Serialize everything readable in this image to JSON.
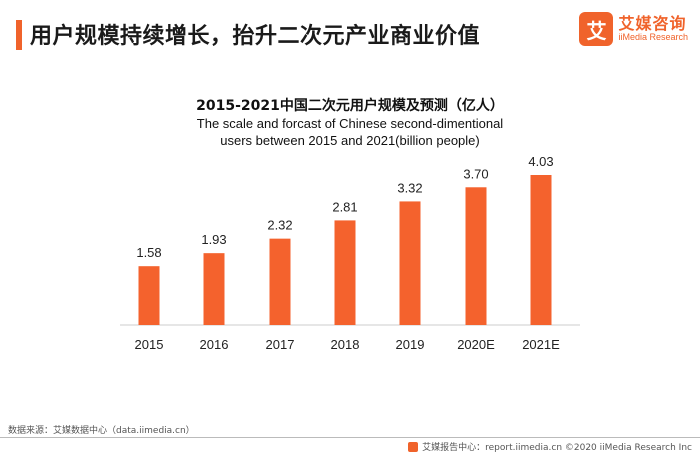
{
  "header": {
    "title": "用户规模持续增长，抬升二次元产业商业价值"
  },
  "logo": {
    "mark": "艾",
    "name_cn": "艾媒咨询",
    "name_en": "iiMedia Research",
    "icon": "iimedia-logo-icon"
  },
  "colors": {
    "accent": "#f0632b",
    "bar": "#f4622d"
  },
  "chart_data": {
    "type": "bar",
    "title": "2015-2021中国二次元用户规模及预测（亿人）",
    "subtitle_lines": [
      "The scale and forcast of Chinese second-dimentional",
      "users between 2015 and 2021(billion people)"
    ],
    "categories": [
      "2015",
      "2016",
      "2017",
      "2018",
      "2019",
      "2020E",
      "2021E"
    ],
    "values": [
      1.58,
      1.93,
      2.32,
      2.81,
      3.32,
      3.7,
      4.03
    ],
    "value_labels": [
      "1.58",
      "1.93",
      "2.32",
      "2.81",
      "3.32",
      "3.70",
      "4.03"
    ],
    "xlabel": "",
    "ylabel": "",
    "ylim": [
      0,
      4.03
    ],
    "grid": false,
    "legend": "none"
  },
  "footer": {
    "source": "数据来源：艾媒数据中心（data.iimedia.cn）",
    "copyright": "艾媒报告中心：report.iimedia.cn ©2020  iiMedia Research Inc",
    "copyright_icon": "iimedia-small-icon"
  }
}
